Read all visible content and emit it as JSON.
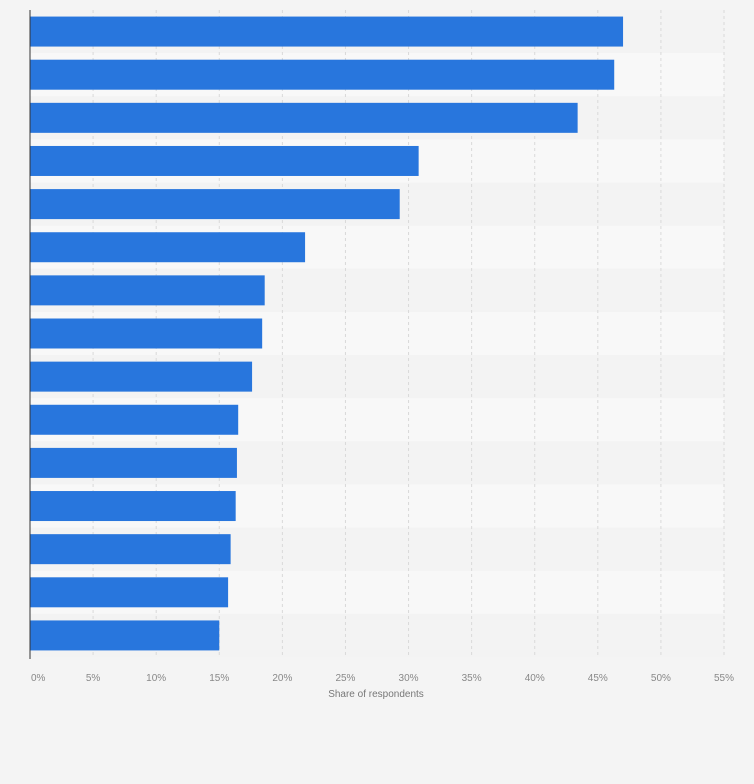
{
  "chart_data": {
    "type": "bar",
    "orientation": "horizontal",
    "values": [
      47,
      46.3,
      43.4,
      30.8,
      29.3,
      21.8,
      18.6,
      18.4,
      17.6,
      16.5,
      16.4,
      16.3,
      15.9,
      15.7,
      15.0
    ],
    "xlabel": "Share of respondents",
    "xlim": [
      0,
      55
    ],
    "tick_labels": [
      "0%",
      "5%",
      "10%",
      "15%",
      "20%",
      "25%",
      "30%",
      "35%",
      "40%",
      "45%",
      "50%",
      "55%"
    ],
    "grid": true,
    "bar_color": "#2876dd",
    "band_colors": [
      "#f3f3f3",
      "#f8f8f8"
    ],
    "grid_color": "#d9d9d9",
    "axis_color": "#333333",
    "tick_color": "#888888",
    "label_color": "#777777"
  }
}
